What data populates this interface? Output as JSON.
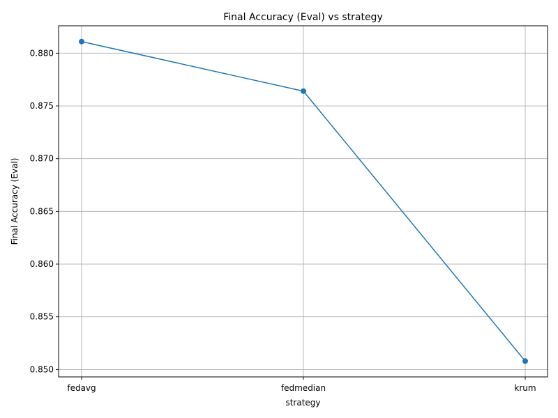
{
  "chart_data": {
    "type": "line",
    "title": "Final Accuracy (Eval) vs strategy",
    "xlabel": "strategy",
    "ylabel": "Final Accuracy (Eval)",
    "categories": [
      "fedavg",
      "fedmedian",
      "krum"
    ],
    "series": [
      {
        "values": [
          0.8811,
          0.8764,
          0.8508
        ],
        "color": "#1f77b4",
        "marker": "circle"
      }
    ],
    "yticks": [
      "0.850",
      "0.855",
      "0.860",
      "0.865",
      "0.870",
      "0.875",
      "0.880"
    ],
    "ylim": [
      0.8493,
      0.8826
    ],
    "grid": true
  }
}
